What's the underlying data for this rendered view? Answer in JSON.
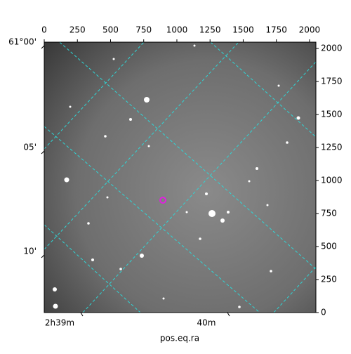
{
  "chart_data": {
    "type": "image",
    "xlabel": "pos.eq.ra",
    "xlim": [
      0,
      2048
    ],
    "xticks": [
      0,
      250,
      500,
      750,
      1000,
      1250,
      1500,
      1750,
      2000
    ],
    "ylim": [
      0,
      2048
    ],
    "yticks": [
      0,
      250,
      500,
      750,
      1000,
      1250,
      1500,
      1750,
      2000
    ],
    "ra_ticks": [
      "2h39m",
      "40m"
    ],
    "dec_ticks": [
      "61°00'",
      "05'",
      "10'"
    ]
  }
}
